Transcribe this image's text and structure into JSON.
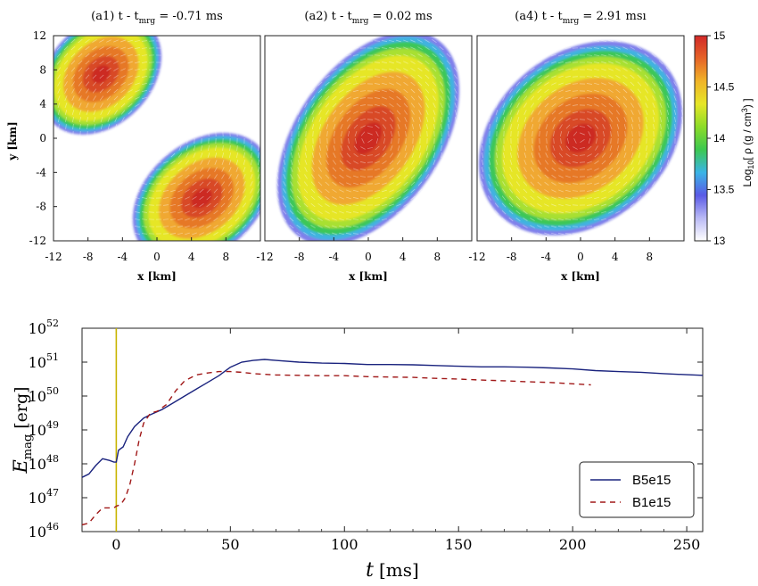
{
  "chart_data": [
    {
      "type": "heatmap",
      "panel": "a1",
      "title": "(a1) t - t_mrg = -0.71 ms",
      "title_main": "(a1) t - t",
      "title_sub": "mrg",
      "title_tail": " = -0.71 ms",
      "xlabel": "x [km]",
      "ylabel": "y [km]",
      "xlim": [
        -12,
        12
      ],
      "ylim": [
        -12,
        12
      ],
      "xticks": [
        "-12",
        "-8",
        "-4",
        "0",
        "4",
        "8"
      ],
      "yticks": [
        "12",
        "8",
        "4",
        "0",
        "-4",
        "-8",
        "-12"
      ],
      "field": "log10 density with velocity arrows",
      "stars": [
        {
          "cx": -6.5,
          "cy": 7.5,
          "a": 8,
          "b": 6,
          "angle": -45
        },
        {
          "cx": 5.2,
          "cy": -7.0,
          "a": 9,
          "b": 6.5,
          "angle": -40
        }
      ]
    },
    {
      "type": "heatmap",
      "panel": "a2",
      "title": "(a2) t - t_mrg = 0.02 ms",
      "title_main": "(a2) t - t",
      "title_sub": "mrg",
      "title_tail": " = 0.02 ms",
      "xlabel": "x [km]",
      "xlim": [
        -12,
        12
      ],
      "ylim": [
        -12,
        12
      ],
      "xticks": [
        "-12",
        "-8",
        "-4",
        "0",
        "4",
        "8"
      ],
      "field": "log10 density with velocity arrows",
      "stars": [
        {
          "cx": 0,
          "cy": 0,
          "a": 14,
          "b": 8.5,
          "angle": -55
        }
      ]
    },
    {
      "type": "heatmap",
      "panel": "a4",
      "title": "(a4) t - t_mrg = 2.91 ms",
      "title_main": "(a4) t - t",
      "title_sub": "mrg",
      "title_tail": " = 2.91 msı",
      "xlabel": "x [km]",
      "xlim": [
        -12,
        12
      ],
      "ylim": [
        -12,
        12
      ],
      "xticks": [
        "-12",
        "-8",
        "-4",
        "0",
        "4",
        "8"
      ],
      "field": "log10 density with velocity arrows",
      "stars": [
        {
          "cx": 0,
          "cy": 0,
          "a": 13,
          "b": 10,
          "angle": -40
        }
      ],
      "colorbar": {
        "label": "Log10[ ρ (g / cm^3) ]",
        "label_text": "Log",
        "label_sub": "10",
        "label_rest": "[ ρ (g / cm",
        "label_sup": "3",
        "label_end": ") ]",
        "range": [
          13,
          15
        ],
        "ticks": [
          "15",
          "14.5",
          "14",
          "13.5",
          "13"
        ],
        "colors": [
          "#ffffff",
          "#b9b9f5",
          "#5a5ae6",
          "#3ab4e6",
          "#3cc850",
          "#8cdc28",
          "#e6e628",
          "#f0b428",
          "#e66428",
          "#d22828"
        ]
      }
    },
    {
      "type": "line",
      "xlabel": "t [ms]",
      "xlabel_main": "t",
      "xlabel_unit": "[ms]",
      "ylabel": "E_mag [erg]",
      "ylabel_main": "E",
      "ylabel_sub": "mag",
      "ylabel_unit": "[erg]",
      "xlim": [
        -15,
        257
      ],
      "ylim_log10": [
        46,
        52
      ],
      "yscale": "log",
      "xticks": [
        "0",
        "50",
        "100",
        "150",
        "200",
        "250"
      ],
      "ytick_exponents": [
        "52",
        "51",
        "50",
        "49",
        "48",
        "47",
        "46"
      ],
      "ytick_base": "10",
      "vertical_marker_x": 0,
      "legend_position": "lower right",
      "series": [
        {
          "name": "B5e15",
          "color": "#1a237e",
          "dash": "solid",
          "points": [
            [
              -15,
              47.6
            ],
            [
              -12,
              47.7
            ],
            [
              -9,
              47.95
            ],
            [
              -6,
              48.15
            ],
            [
              -3,
              48.1
            ],
            [
              -1,
              48.05
            ],
            [
              0,
              48.05
            ],
            [
              1,
              48.4
            ],
            [
              3,
              48.5
            ],
            [
              5,
              48.8
            ],
            [
              8,
              49.1
            ],
            [
              12,
              49.35
            ],
            [
              15,
              49.45
            ],
            [
              20,
              49.6
            ],
            [
              25,
              49.8
            ],
            [
              30,
              50.0
            ],
            [
              35,
              50.2
            ],
            [
              40,
              50.4
            ],
            [
              45,
              50.6
            ],
            [
              50,
              50.85
            ],
            [
              55,
              51.0
            ],
            [
              60,
              51.05
            ],
            [
              65,
              51.08
            ],
            [
              70,
              51.05
            ],
            [
              80,
              51.0
            ],
            [
              90,
              50.97
            ],
            [
              100,
              50.96
            ],
            [
              110,
              50.93
            ],
            [
              120,
              50.93
            ],
            [
              130,
              50.92
            ],
            [
              140,
              50.9
            ],
            [
              150,
              50.88
            ],
            [
              160,
              50.86
            ],
            [
              170,
              50.86
            ],
            [
              180,
              50.85
            ],
            [
              190,
              50.83
            ],
            [
              200,
              50.8
            ],
            [
              210,
              50.75
            ],
            [
              220,
              50.72
            ],
            [
              230,
              50.7
            ],
            [
              240,
              50.66
            ],
            [
              250,
              50.63
            ],
            [
              257,
              50.61
            ]
          ]
        },
        {
          "name": "B1e15",
          "color": "#a01818",
          "dash": "dashed",
          "points": [
            [
              -15,
              46.2
            ],
            [
              -12,
              46.25
            ],
            [
              -9,
              46.5
            ],
            [
              -6,
              46.7
            ],
            [
              -3,
              46.7
            ],
            [
              -1,
              46.7
            ],
            [
              0,
              46.75
            ],
            [
              2,
              46.8
            ],
            [
              4,
              47.0
            ],
            [
              6,
              47.4
            ],
            [
              8,
              48.0
            ],
            [
              10,
              48.7
            ],
            [
              12,
              49.2
            ],
            [
              15,
              49.5
            ],
            [
              18,
              49.55
            ],
            [
              22,
              49.75
            ],
            [
              26,
              50.15
            ],
            [
              30,
              50.45
            ],
            [
              35,
              50.62
            ],
            [
              40,
              50.68
            ],
            [
              45,
              50.72
            ],
            [
              50,
              50.72
            ],
            [
              55,
              50.7
            ],
            [
              60,
              50.66
            ],
            [
              70,
              50.62
            ],
            [
              80,
              50.61
            ],
            [
              90,
              50.6
            ],
            [
              100,
              50.6
            ],
            [
              110,
              50.57
            ],
            [
              120,
              50.56
            ],
            [
              130,
              50.55
            ],
            [
              140,
              50.52
            ],
            [
              150,
              50.5
            ],
            [
              160,
              50.47
            ],
            [
              170,
              50.45
            ],
            [
              180,
              50.42
            ],
            [
              190,
              50.4
            ],
            [
              200,
              50.36
            ],
            [
              208,
              50.33
            ]
          ]
        }
      ]
    }
  ]
}
